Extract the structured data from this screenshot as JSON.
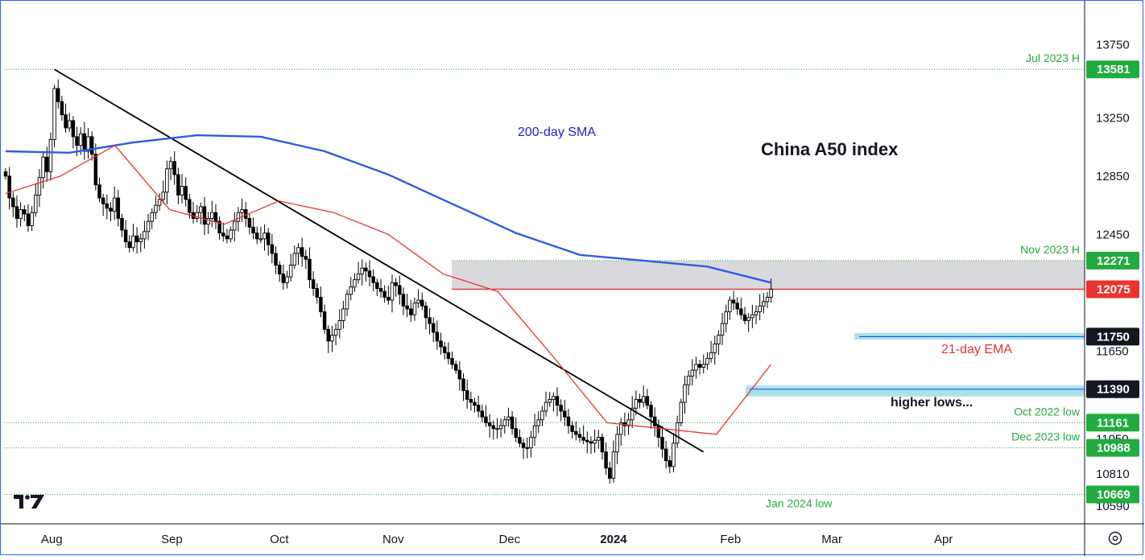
{
  "colors": {
    "background": "#ffffff",
    "candle_up": "#ffffff",
    "candle_down": "#000000",
    "candle_border": "#000000",
    "sma200": "#2f5be6",
    "ema21": "#e8332f",
    "trendline": "#000000",
    "resistance_line": "#e8332f",
    "resistance_zone": "#d9d9dd",
    "support_zone": "#8fd8ea",
    "green_dotted": "#22ab3f",
    "green_label": "#22ab3f",
    "red_label": "#e8332f",
    "dark_label": "#131722"
  },
  "icons": {
    "logo": "tradingview-logo-icon",
    "settings": "gear-icon"
  },
  "chart_data": {
    "type": "candlestick",
    "title": "China A50 index",
    "xlabel": "",
    "ylabel": "",
    "ylim": [
      10545,
      13880
    ],
    "y_ticks": [
      "13750",
      "13250",
      "12850",
      "12450",
      "11650",
      "11050",
      "10810",
      "10590"
    ],
    "x_ticks": [
      "Aug",
      "Sep",
      "Oct",
      "Nov",
      "Dec",
      "2024",
      "Feb",
      "Mar",
      "Apr"
    ],
    "x_tick_bar_index": [
      12,
      44,
      73,
      103,
      134,
      161,
      193,
      220,
      250
    ],
    "grid": false,
    "legend": "none",
    "annotations": [
      {
        "text": "200-day SMA",
        "color": "#1f1fd6"
      },
      {
        "text": "21-day EMA",
        "color": "#e8332f"
      },
      {
        "text": "higher lows...",
        "color": "#131722"
      }
    ],
    "levels": [
      {
        "value": 13581,
        "label": "13581",
        "note": "Jul 2023 H",
        "color": "#22ab3f"
      },
      {
        "value": 12271,
        "label": "12271",
        "note": "Nov 2023 H",
        "color": "#22ab3f"
      },
      {
        "value": 12075,
        "label": "12075",
        "note": "",
        "color": "#e8332f"
      },
      {
        "value": 11750,
        "label": "11750",
        "note": "",
        "color": "#131722"
      },
      {
        "value": 11390,
        "label": "11390",
        "note": "",
        "color": "#131722"
      },
      {
        "value": 11161,
        "label": "11161",
        "note": "Oct 2022 low",
        "color": "#22ab3f"
      },
      {
        "value": 10988,
        "label": "10988",
        "note": "Dec 2023 low",
        "color": "#22ab3f"
      },
      {
        "value": 10669,
        "label": "10669",
        "note": "Jan 2024 low",
        "color": "#22ab3f"
      }
    ],
    "resistance_zone": [
      12075,
      12271
    ],
    "support_zones": [
      [
        11730,
        11775
      ],
      [
        11340,
        11415
      ]
    ],
    "trendline": {
      "start": {
        "bar": 13,
        "value": 13581
      },
      "end": {
        "bar": 186,
        "value": 10960
      }
    },
    "series": [
      {
        "name": "China A50 index",
        "kind": "close",
        "values": [
          12850,
          12700,
          12640,
          12560,
          12620,
          12590,
          12510,
          12600,
          12720,
          12840,
          12980,
          12880,
          13100,
          13450,
          13360,
          13270,
          13180,
          13230,
          13120,
          13060,
          13140,
          13020,
          13120,
          13000,
          12790,
          12700,
          12660,
          12630,
          12610,
          12700,
          12560,
          12480,
          12400,
          12360,
          12440,
          12400,
          12420,
          12470,
          12540,
          12600,
          12650,
          12690,
          12740,
          12900,
          12950,
          12860,
          12720,
          12780,
          12690,
          12600,
          12560,
          12600,
          12640,
          12520,
          12560,
          12600,
          12540,
          12460,
          12440,
          12420,
          12480,
          12540,
          12600,
          12620,
          12560,
          12500,
          12460,
          12420,
          12420,
          12460,
          12380,
          12320,
          12240,
          12180,
          12120,
          12160,
          12240,
          12320,
          12360,
          12300,
          12280,
          12140,
          12080,
          12020,
          11920,
          11800,
          11720,
          11760,
          11800,
          11860,
          11940,
          12040,
          12090,
          12140,
          12180,
          12220,
          12200,
          12160,
          12120,
          12080,
          12060,
          12020,
          12000,
          12120,
          12100,
          12040,
          11960,
          11940,
          11900,
          11980,
          12000,
          11960,
          11880,
          11840,
          11780,
          11720,
          11680,
          11640,
          11600,
          11560,
          11520,
          11460,
          11380,
          11320,
          11300,
          11280,
          11240,
          11200,
          11160,
          11140,
          11120,
          11120,
          11140,
          11180,
          11200,
          11120,
          11060,
          11020,
          10990,
          10988,
          11060,
          11140,
          11180,
          11240,
          11300,
          11320,
          11340,
          11280,
          11240,
          11200,
          11140,
          11100,
          11080,
          11060,
          11040,
          11030,
          11020,
          11040,
          11060,
          10960,
          10850,
          10780,
          10960,
          11080,
          11160,
          11140,
          11180,
          11260,
          11320,
          11300,
          11340,
          11280,
          11200,
          11140,
          11060,
          10980,
          10900,
          10860,
          11020,
          11160,
          11300,
          11420,
          11480,
          11520,
          11560,
          11540,
          11560,
          11600,
          11640,
          11700,
          11760,
          11840,
          11920,
          12000,
          11980,
          11940,
          11900,
          11860,
          11880,
          11900,
          11920,
          11960,
          11990,
          12020,
          12075
        ]
      },
      {
        "name": "200-day SMA",
        "values": [
          13020,
          13010,
          13080,
          13130,
          13120,
          13020,
          12860,
          12660,
          12460,
          12310,
          12271,
          12230,
          12120
        ]
      },
      {
        "name": "21-day EMA",
        "values": [
          12730,
          12850,
          13060,
          12620,
          12520,
          12680,
          12600,
          12450,
          12180,
          12060,
          11620,
          11160,
          11120,
          11080,
          11560
        ]
      }
    ]
  },
  "texts": {
    "title": "China A50 index",
    "sma_label": "200-day SMA",
    "ema_label": "21-day EMA",
    "higher_lows": "higher lows..."
  }
}
